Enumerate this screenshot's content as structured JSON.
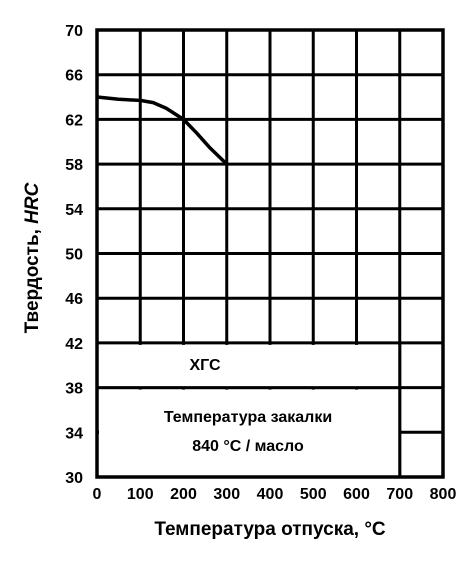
{
  "chart_data": {
    "type": "line",
    "xlabel": "Температура отпуска, °C",
    "ylabel_prefix": "Твердость, ",
    "ylabel_unit": "HRC",
    "xlim": [
      0,
      800
    ],
    "ylim": [
      30,
      70
    ],
    "x_ticks": [
      "0",
      "100",
      "200",
      "300",
      "400",
      "500",
      "600",
      "700",
      "800"
    ],
    "y_ticks": [
      "30",
      "34",
      "38",
      "42",
      "46",
      "50",
      "54",
      "58",
      "62",
      "66",
      "70"
    ],
    "grid": true,
    "series": [
      {
        "name": "ХГС",
        "x": [
          0,
          50,
          100,
          130,
          160,
          200,
          230,
          260,
          300
        ],
        "y": [
          64.0,
          63.8,
          63.7,
          63.5,
          63.0,
          62.0,
          60.8,
          59.5,
          58.0
        ]
      }
    ],
    "annotations": {
      "steel_grade": "ХГС",
      "quench_line1": "Температура закалки",
      "quench_line2": "840 °C / масло"
    }
  }
}
